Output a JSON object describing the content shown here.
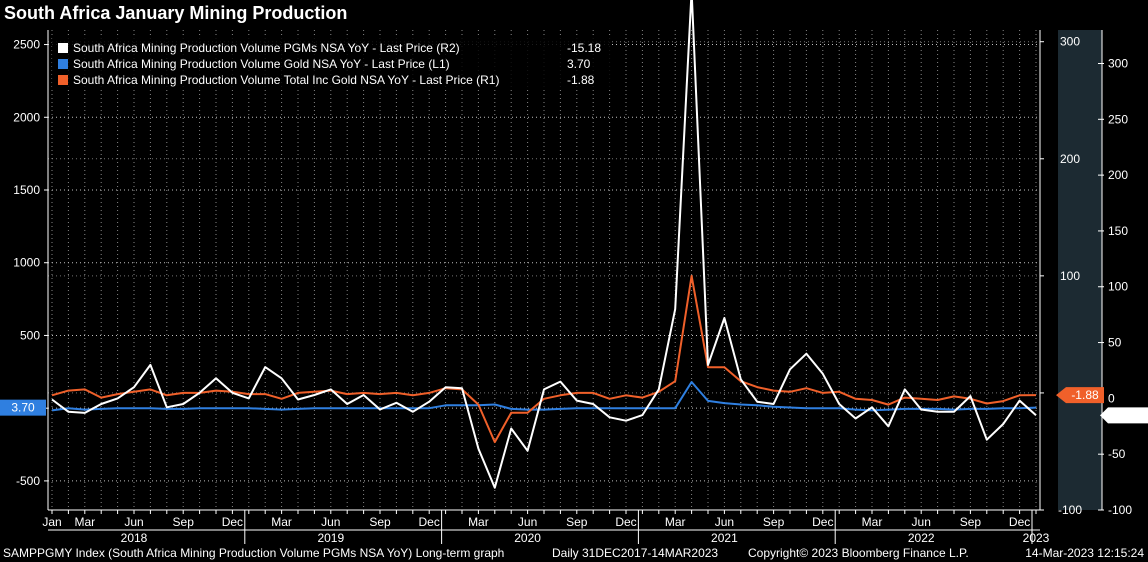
{
  "header": {
    "title": "South Africa January Mining Production"
  },
  "colors": {
    "pgms": "#ffffff",
    "gold": "#2f7fe0",
    "total": "#f0602a",
    "background": "#000000",
    "grid": "#bfbfbf"
  },
  "chart_data": {
    "type": "line",
    "title": "South Africa January Mining Production",
    "x": [
      "2018-01",
      "2018-02",
      "2018-03",
      "2018-04",
      "2018-05",
      "2018-06",
      "2018-07",
      "2018-08",
      "2018-09",
      "2018-10",
      "2018-11",
      "2018-12",
      "2019-01",
      "2019-02",
      "2019-03",
      "2019-04",
      "2019-05",
      "2019-06",
      "2019-07",
      "2019-08",
      "2019-09",
      "2019-10",
      "2019-11",
      "2019-12",
      "2020-01",
      "2020-02",
      "2020-03",
      "2020-04",
      "2020-05",
      "2020-06",
      "2020-07",
      "2020-08",
      "2020-09",
      "2020-10",
      "2020-11",
      "2020-12",
      "2021-01",
      "2021-02",
      "2021-03",
      "2021-04",
      "2021-05",
      "2021-06",
      "2021-07",
      "2021-08",
      "2021-09",
      "2021-10",
      "2021-11",
      "2021-12",
      "2022-01",
      "2022-02",
      "2022-03",
      "2022-04",
      "2022-05",
      "2022-06",
      "2022-07",
      "2022-08",
      "2022-09",
      "2022-10",
      "2022-11",
      "2022-12",
      "2023-01"
    ],
    "series": [
      {
        "name": "South Africa Mining Production Volume PGMs NSA YoY - Last Price (R2)",
        "axis": "R2",
        "last": "-15.18",
        "values": [
          -1,
          -12,
          -13,
          -5,
          0,
          10,
          30,
          -8,
          -5,
          5,
          18,
          5,
          0,
          28,
          18,
          -1,
          3,
          8,
          -5,
          3,
          -10,
          -4,
          -12,
          -3,
          10,
          9,
          -45,
          -80,
          -27,
          -47,
          8,
          15,
          -2,
          -5,
          -17,
          -20,
          -15,
          8,
          80,
          365,
          30,
          72,
          17,
          -3,
          -5,
          26,
          40,
          22,
          -5,
          -18,
          -8,
          -25,
          8,
          -10,
          -12,
          -12,
          2,
          -37,
          -23,
          -2,
          -15.18
        ]
      },
      {
        "name": "South Africa Mining Production Volume Gold NSA YoY - Last Price (L1)",
        "axis": "L1",
        "last": "3.70",
        "values": [
          -15,
          0,
          -10,
          -5,
          0,
          0,
          0,
          -5,
          -5,
          0,
          0,
          0,
          0,
          -5,
          -10,
          -5,
          0,
          0,
          0,
          0,
          0,
          0,
          0,
          0,
          20,
          20,
          20,
          25,
          -5,
          -10,
          -10,
          -5,
          0,
          0,
          0,
          0,
          0,
          0,
          0,
          180,
          50,
          35,
          25,
          20,
          10,
          5,
          0,
          0,
          0,
          -10,
          -15,
          -10,
          -5,
          -5,
          -5,
          -10,
          -5,
          -5,
          0,
          0,
          3.7
        ]
      },
      {
        "name": "South Africa Mining Production Volume Total Inc Gold NSA YoY - Last Price (R1)",
        "axis": "R1",
        "last": "-1.88",
        "values": [
          -2,
          2,
          3,
          -4,
          -1,
          1,
          3,
          -2,
          0,
          0,
          2,
          1,
          -1,
          -1,
          -5,
          0,
          1,
          2,
          -1,
          0,
          -1,
          0,
          -2,
          0,
          4,
          3,
          -10,
          -42,
          -17,
          -17,
          -5,
          -2,
          0,
          0,
          -5,
          -2,
          -4,
          1,
          10,
          100,
          22,
          22,
          10,
          5,
          2,
          1,
          4,
          0,
          1,
          -5,
          -6,
          -10,
          -4,
          -5,
          -6,
          -3,
          -5,
          -9,
          -7,
          -2,
          -1.88
        ]
      }
    ],
    "left_axis": {
      "ticks": [
        "-500",
        "0",
        "500",
        "1000",
        "1500",
        "2000",
        "2500"
      ],
      "ylim": [
        -700,
        2600
      ],
      "last_label": "3.70"
    },
    "right_axis_r1": {
      "ticks": [
        "-100",
        "0",
        "100",
        "200",
        "300"
      ],
      "ylim": [
        -100,
        310
      ],
      "last_label": "-1.88"
    },
    "right_axis_r2": {
      "ticks": [
        "-100",
        "-50",
        "0",
        "50",
        "100",
        "150",
        "200",
        "250",
        "300"
      ],
      "ylim": [
        -100,
        330
      ],
      "last_label": "-15.18"
    },
    "x_month_labels": [
      {
        "x": "2018-01",
        "t": "Jan"
      },
      {
        "x": "2018-03",
        "t": "Mar"
      },
      {
        "x": "2018-06",
        "t": "Jun"
      },
      {
        "x": "2018-09",
        "t": "Sep"
      },
      {
        "x": "2018-12",
        "t": "Dec"
      },
      {
        "x": "2019-03",
        "t": "Mar"
      },
      {
        "x": "2019-06",
        "t": "Jun"
      },
      {
        "x": "2019-09",
        "t": "Sep"
      },
      {
        "x": "2019-12",
        "t": "Dec"
      },
      {
        "x": "2020-03",
        "t": "Mar"
      },
      {
        "x": "2020-06",
        "t": "Jun"
      },
      {
        "x": "2020-09",
        "t": "Sep"
      },
      {
        "x": "2020-12",
        "t": "Dec"
      },
      {
        "x": "2021-03",
        "t": "Mar"
      },
      {
        "x": "2021-06",
        "t": "Jun"
      },
      {
        "x": "2021-09",
        "t": "Sep"
      },
      {
        "x": "2021-12",
        "t": "Dec"
      },
      {
        "x": "2022-03",
        "t": "Mar"
      },
      {
        "x": "2022-06",
        "t": "Jun"
      },
      {
        "x": "2022-09",
        "t": "Sep"
      },
      {
        "x": "2022-12",
        "t": "Dec"
      }
    ],
    "x_year_labels": [
      {
        "x": "2018-06",
        "t": "2018"
      },
      {
        "x": "2019-06",
        "t": "2019"
      },
      {
        "x": "2020-06",
        "t": "2020"
      },
      {
        "x": "2021-06",
        "t": "2021"
      },
      {
        "x": "2022-06",
        "t": "2022"
      },
      {
        "x": "2023-01",
        "t": "2023"
      }
    ],
    "legend_position": "top-left",
    "grid": true
  },
  "footer": {
    "source": "SAMPPGMY Index (South Africa Mining Production Volume PGMs NSA YoY) Long-term graph",
    "range": "Daily 31DEC2017-14MAR2023",
    "copyright": "Copyright© 2023 Bloomberg Finance L.P.",
    "timestamp": "14-Mar-2023 12:15:24"
  }
}
